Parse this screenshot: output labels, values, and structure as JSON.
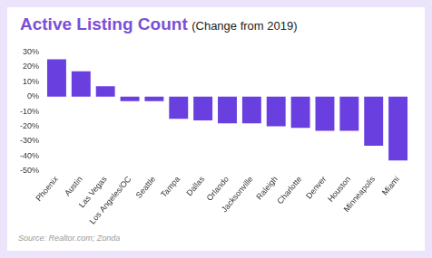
{
  "chart_data": {
    "type": "bar",
    "title": "Active Listing Count",
    "subtitle": "(Change from 2019)",
    "source": "Source: Realtor.com; Zonda",
    "categories": [
      "Phoenix",
      "Austin",
      "Las Vegas",
      "Los Angeles/OC",
      "Seattle",
      "Tampa",
      "Dallas",
      "Orlando",
      "Jacksonville",
      "Raleigh",
      "Charlotte",
      "Denver",
      "Houston",
      "Minneapolis",
      "Miami"
    ],
    "values": [
      25,
      17,
      7,
      -3,
      -3,
      -15,
      -16,
      -18,
      -18,
      -20,
      -21,
      -23,
      -23,
      -33,
      -43
    ],
    "color": "#6a3fe0",
    "ylim": [
      -50,
      30
    ],
    "yticks": [
      {
        "value": 30,
        "label": "30%"
      },
      {
        "value": 20,
        "label": "20%"
      },
      {
        "value": 10,
        "label": "10%"
      },
      {
        "value": 0,
        "label": "0%"
      },
      {
        "value": -10,
        "label": "-10%"
      },
      {
        "value": -20,
        "label": "-20%"
      },
      {
        "value": -30,
        "label": "-30%"
      },
      {
        "value": -40,
        "label": "-40%"
      },
      {
        "value": -50,
        "label": "-50%"
      }
    ],
    "grid": false
  }
}
